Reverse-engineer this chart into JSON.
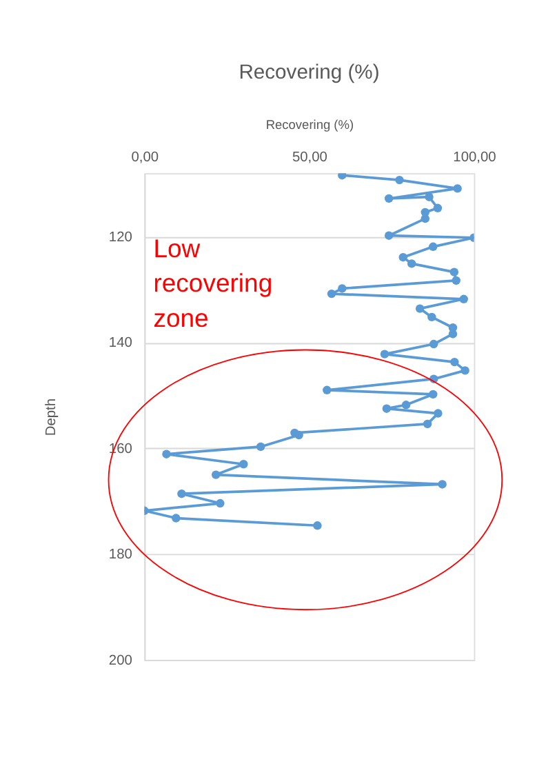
{
  "chart_data": {
    "type": "line",
    "orientation": "horizontal",
    "title": "Recovering (%)",
    "xlabel": "Recovering (%)",
    "ylabel": "Depth",
    "x": [
      108.4,
      109.3,
      110.9,
      112.8,
      112.5,
      114.6,
      115.4,
      116.6,
      119.8,
      120.2,
      121.9,
      123.9,
      125.1,
      126.7,
      128.3,
      129.8,
      130.8,
      131.8,
      133.6,
      135.2,
      137.2,
      138.4,
      140.3,
      142.2,
      143.7,
      145.3,
      146.9,
      149,
      149.8,
      151.8,
      152.5,
      153.4,
      155.4,
      157.1,
      157.5,
      159.7,
      161.1,
      163,
      165,
      166.8,
      168.6,
      170.4,
      171.8,
      173.2,
      174.6
    ],
    "series": [
      {
        "color": "#5b9bd5",
        "values": [
          60,
          77.4,
          95,
          74.2,
          86.4,
          89,
          85.2,
          85.2,
          74.2,
          100,
          87.6,
          78.5,
          81.1,
          94,
          94.6,
          60,
          56.8,
          96.9,
          83.6,
          87.2,
          93.6,
          93.6,
          87.8,
          72.9,
          94.1,
          97.3,
          87.8,
          55.4,
          87.6,
          79.4,
          73.5,
          89.1,
          85.9,
          45.6,
          46.9,
          35.3,
          6.7,
          30.1,
          21.7,
          90.4,
          11.3,
          23,
          0,
          9.6,
          52.5
        ]
      }
    ],
    "xlim": [
      0,
      100
    ],
    "xticks": [
      {
        "value": 0,
        "label": "0,00"
      },
      {
        "value": 50,
        "label": "50,00"
      },
      {
        "value": 100,
        "label": "100,00"
      }
    ],
    "ylim": [
      200,
      108
    ],
    "yticks": [
      120,
      140,
      160,
      180,
      200
    ],
    "grid": "y",
    "marker": "circle",
    "line_style": "solid",
    "annotations": [
      "Low recovering zone"
    ]
  }
}
